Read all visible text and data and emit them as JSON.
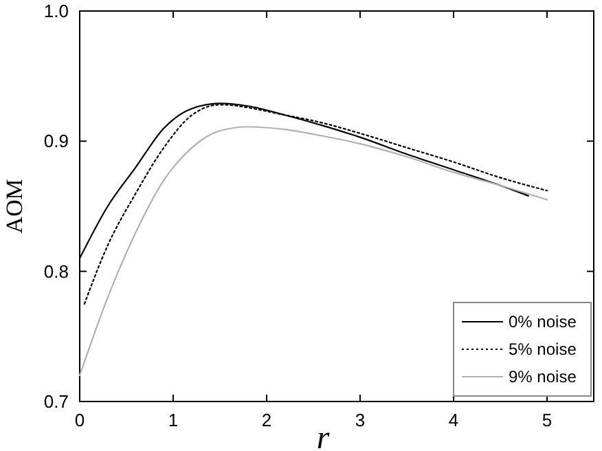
{
  "chart_data": {
    "type": "line",
    "xlabel": "r",
    "ylabel": "AOM",
    "xlim": [
      0,
      5.5
    ],
    "ylim": [
      0.7,
      1.0
    ],
    "xticks": [
      0,
      1,
      2,
      3,
      4,
      5
    ],
    "yticks": [
      0.7,
      0.8,
      0.9,
      {
        "value": 1.0,
        "label": "1.0"
      }
    ],
    "grid": false,
    "legend": "bottom right",
    "marker": "none",
    "series": [
      {
        "name": "0% noise",
        "color": "#000000",
        "line_style": "solid",
        "x": [
          0,
          0.3,
          0.6,
          0.9,
          1.2,
          1.5,
          1.8,
          2.2,
          2.6,
          3,
          3.5,
          4,
          4.5,
          4.8
        ],
        "values": [
          0.81,
          0.85,
          0.88,
          0.91,
          0.925,
          0.929,
          0.927,
          0.92,
          0.912,
          0.903,
          0.89,
          0.878,
          0.866,
          0.858
        ]
      },
      {
        "name": "5% noise",
        "color": "#000000",
        "line_style": "dotted",
        "x": [
          0.05,
          0.3,
          0.6,
          0.9,
          1.2,
          1.5,
          2.2,
          2.6,
          3,
          3.5,
          4,
          4.5,
          5
        ],
        "values": [
          0.775,
          0.82,
          0.86,
          0.895,
          0.92,
          0.928,
          0.92,
          0.914,
          0.906,
          0.895,
          0.884,
          0.872,
          0.862
        ]
      },
      {
        "name": "9% noise",
        "color": "#b0b0b0",
        "line_style": "solid",
        "x": [
          0,
          0.3,
          0.6,
          0.9,
          1.2,
          1.5,
          1.8,
          2.2,
          2.6,
          3,
          3.5,
          4,
          4.5,
          5
        ],
        "values": [
          0.72,
          0.78,
          0.83,
          0.87,
          0.895,
          0.908,
          0.911,
          0.909,
          0.904,
          0.898,
          0.888,
          0.876,
          0.866,
          0.855
        ]
      }
    ]
  }
}
